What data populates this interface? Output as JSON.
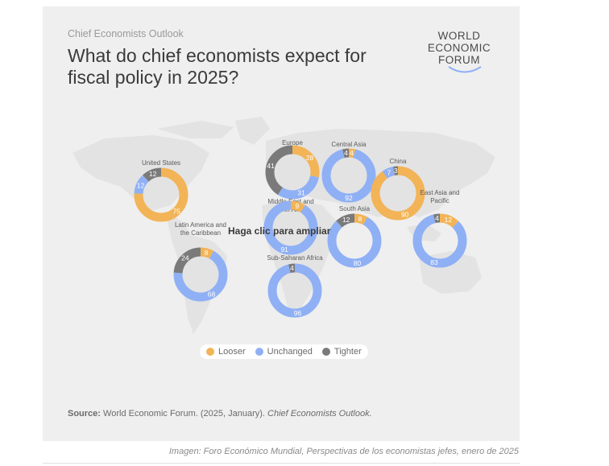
{
  "header": {
    "subtitle": "Chief Economists Outlook",
    "title": "What do chief economists expect for fiscal policy in 2025?"
  },
  "logo": {
    "line1": "WORLD",
    "line2": "ECONOMIC",
    "line3": "FORUM"
  },
  "overlay_text": "Haga clic para ampliar",
  "source": {
    "label": "Source:",
    "text": "World Economic Forum. (2025, January).",
    "title": "Chief Economists Outlook."
  },
  "caption": "Imagen: Foro Económico Mundial, Perspectivas de los economistas jefes, enero de 2025",
  "colors": {
    "looser": "#f2b457",
    "unchanged": "#8fb0f5",
    "tighter": "#7a7a7a",
    "map": "#e3e3e3",
    "background": "#efefef"
  },
  "chart_data": {
    "type": "donut",
    "legend": [
      "Looser",
      "Unchanged",
      "Tighter"
    ],
    "legend_placement": "bottom-center",
    "regions": [
      {
        "name": "United States",
        "looser": 75,
        "unchanged": 12,
        "tighter": 12
      },
      {
        "name": "Europe",
        "looser": 28,
        "unchanged": 31,
        "tighter": 41
      },
      {
        "name": "Central Asia",
        "looser": 4,
        "unchanged": 92,
        "tighter": 4
      },
      {
        "name": "China",
        "looser": 90,
        "unchanged": 7,
        "tighter": 3
      },
      {
        "name": "Latin America and the Caribbean",
        "looser": 8,
        "unchanged": 68,
        "tighter": 24
      },
      {
        "name": "Middle East and North Africa",
        "looser": 9,
        "unchanged": 91,
        "tighter": 0
      },
      {
        "name": "South Asia",
        "looser": 8,
        "unchanged": 80,
        "tighter": 12
      },
      {
        "name": "East Asia and Pacific",
        "looser": 12,
        "unchanged": 83,
        "tighter": 4
      },
      {
        "name": "Sub-Saharan Africa",
        "looser": 0,
        "unchanged": 96,
        "tighter": 4
      }
    ]
  }
}
